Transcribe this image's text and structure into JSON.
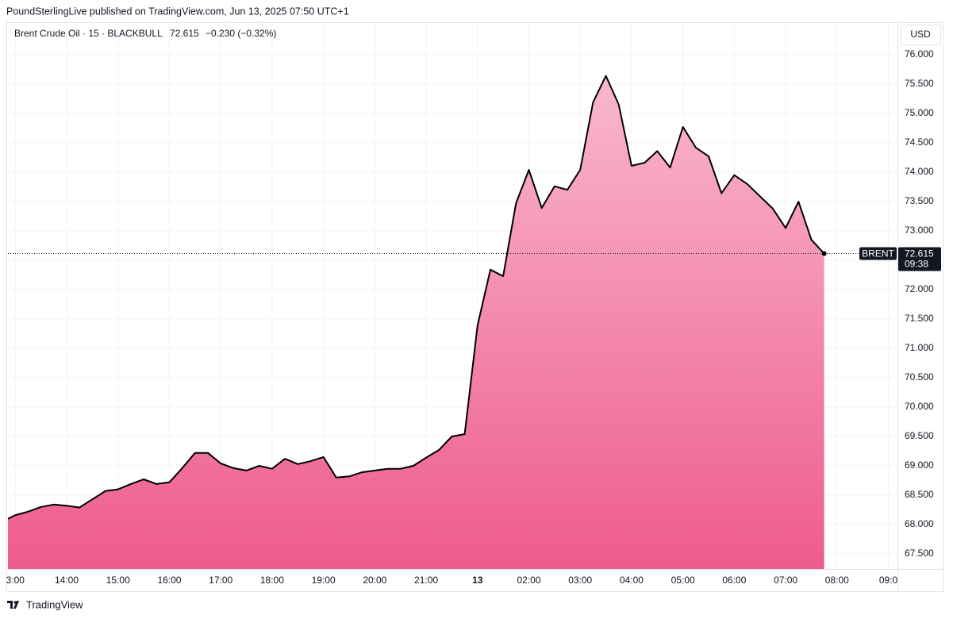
{
  "header": "PoundSterlingLive published on TradingView.com, Jun 13, 2025 07:50 UTC+1",
  "footer": "TradingView",
  "chart_data": {
    "type": "area",
    "title": "Brent Crude Oil · 15 · BLACKBULL",
    "change": "−0.230 (−0.32%)",
    "currency": "USD",
    "countdown": "09:38",
    "categories": [
      null,
      "3:00",
      null,
      null,
      null,
      "14:00",
      null,
      null,
      null,
      "15:00",
      null,
      null,
      null,
      "16:00",
      null,
      null,
      null,
      "17:00",
      null,
      null,
      null,
      "18:00",
      null,
      null,
      null,
      "19:00",
      null,
      null,
      null,
      "20:00",
      null,
      null,
      null,
      "21:00",
      null,
      null,
      null,
      "13",
      null,
      null,
      null,
      "02:00",
      null,
      null,
      null,
      "03:00",
      null,
      null,
      null,
      "04:00",
      null,
      null,
      null,
      "05:00",
      null,
      null,
      null,
      "06:00",
      null,
      null,
      null,
      "07:00",
      null,
      null,
      null,
      "08:00",
      null,
      null,
      null,
      "09:0"
    ],
    "series": [
      {
        "name": "BRENT",
        "color": "#000000",
        "fill_colors": [
          "#f9b8cc",
          "#ee5b8d"
        ],
        "values": [
          68.05,
          68.16,
          68.22,
          68.3,
          68.34,
          68.32,
          68.29,
          68.43,
          68.57,
          68.6,
          68.69,
          68.77,
          68.69,
          68.72,
          68.96,
          69.22,
          69.22,
          69.04,
          68.96,
          68.92,
          69.0,
          68.95,
          69.12,
          69.03,
          69.08,
          69.15,
          68.8,
          68.82,
          68.89,
          68.92,
          68.95,
          68.95,
          69.0,
          69.14,
          69.27,
          69.5,
          69.54,
          71.39,
          72.34,
          72.23,
          73.47,
          74.04,
          73.39,
          73.76,
          73.7,
          74.04,
          75.19,
          75.64,
          75.15,
          74.11,
          74.16,
          74.36,
          74.08,
          74.77,
          74.42,
          74.27,
          73.64,
          73.95,
          73.8,
          73.59,
          73.38,
          73.05,
          73.5,
          72.85,
          72.615,
          null,
          null,
          null,
          null,
          null
        ]
      }
    ],
    "ylim": [
      67.243,
      76.527
    ],
    "yticks": [
      {
        "value": 67.5,
        "label": "67.500"
      },
      {
        "value": 68,
        "label": "68.000"
      },
      {
        "value": 68.5,
        "label": "68.500"
      },
      {
        "value": 69,
        "label": "69.000"
      },
      {
        "value": 69.5,
        "label": "69.500"
      },
      {
        "value": 70,
        "label": "70.000"
      },
      {
        "value": 70.5,
        "label": "70.500"
      },
      {
        "value": 71,
        "label": "71.000"
      },
      {
        "value": 71.5,
        "label": "71.500"
      },
      {
        "value": 72,
        "label": "72.000"
      },
      {
        "value": 72.5,
        "label": "72.500"
      },
      {
        "value": 73,
        "label": "73.000"
      },
      {
        "value": 73.5,
        "label": "73.500"
      },
      {
        "value": 74,
        "label": "74.000"
      },
      {
        "value": 74.5,
        "label": "74.500"
      },
      {
        "value": 75,
        "label": "75.000"
      },
      {
        "value": 75.5,
        "label": "75.500"
      },
      {
        "value": 76,
        "label": "76.000"
      }
    ],
    "grid": true
  }
}
